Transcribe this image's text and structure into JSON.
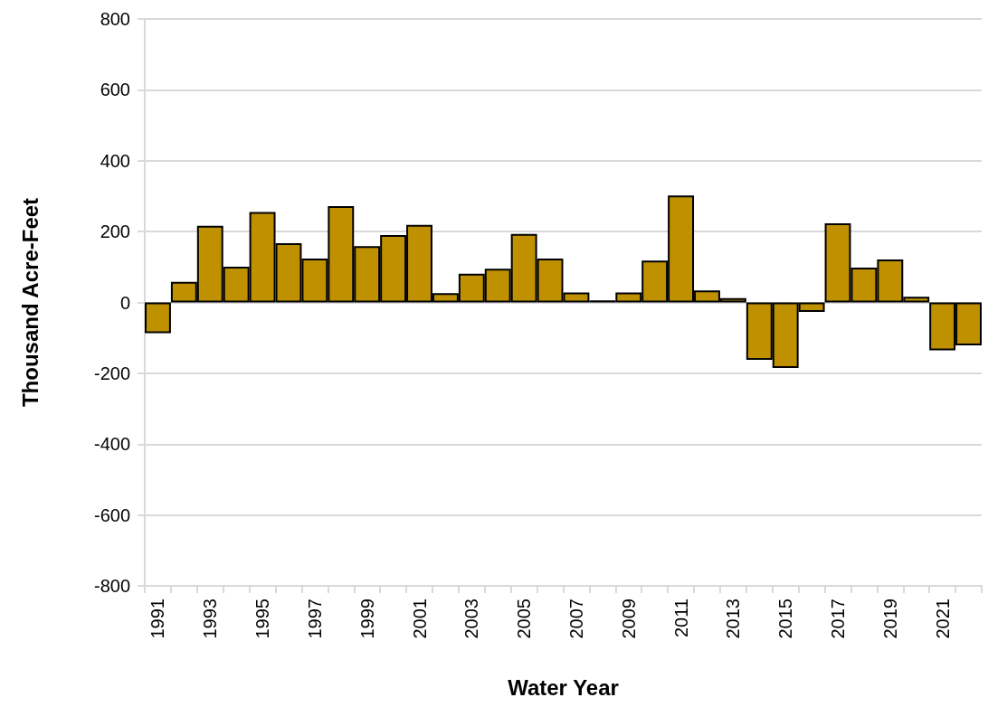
{
  "chart_data": {
    "type": "bar",
    "xlabel": "Water Year",
    "ylabel": "Thousand Acre-Feet",
    "categories": [
      "1991",
      null,
      "1993",
      null,
      "1995",
      null,
      "1997",
      null,
      "1999",
      null,
      "2001",
      null,
      "2003",
      null,
      "2005",
      null,
      "2007",
      null,
      "2009",
      null,
      "2011",
      null,
      "2013",
      null,
      "2015",
      null,
      "2017",
      null,
      "2019",
      null,
      "2021",
      null
    ],
    "values": [
      -87,
      58,
      216,
      101,
      255,
      167,
      124,
      272,
      159,
      190,
      219,
      26,
      81,
      95,
      193,
      124,
      28,
      6,
      28,
      118,
      302,
      34,
      12,
      -162,
      -185,
      -27,
      223,
      98,
      121,
      16,
      -135,
      -121
    ],
    "color": "#bf9000",
    "ylim": [
      -800,
      800
    ],
    "yticks": [
      -800,
      -600,
      -400,
      -200,
      0,
      200,
      400,
      600,
      800
    ],
    "grid": "y"
  }
}
